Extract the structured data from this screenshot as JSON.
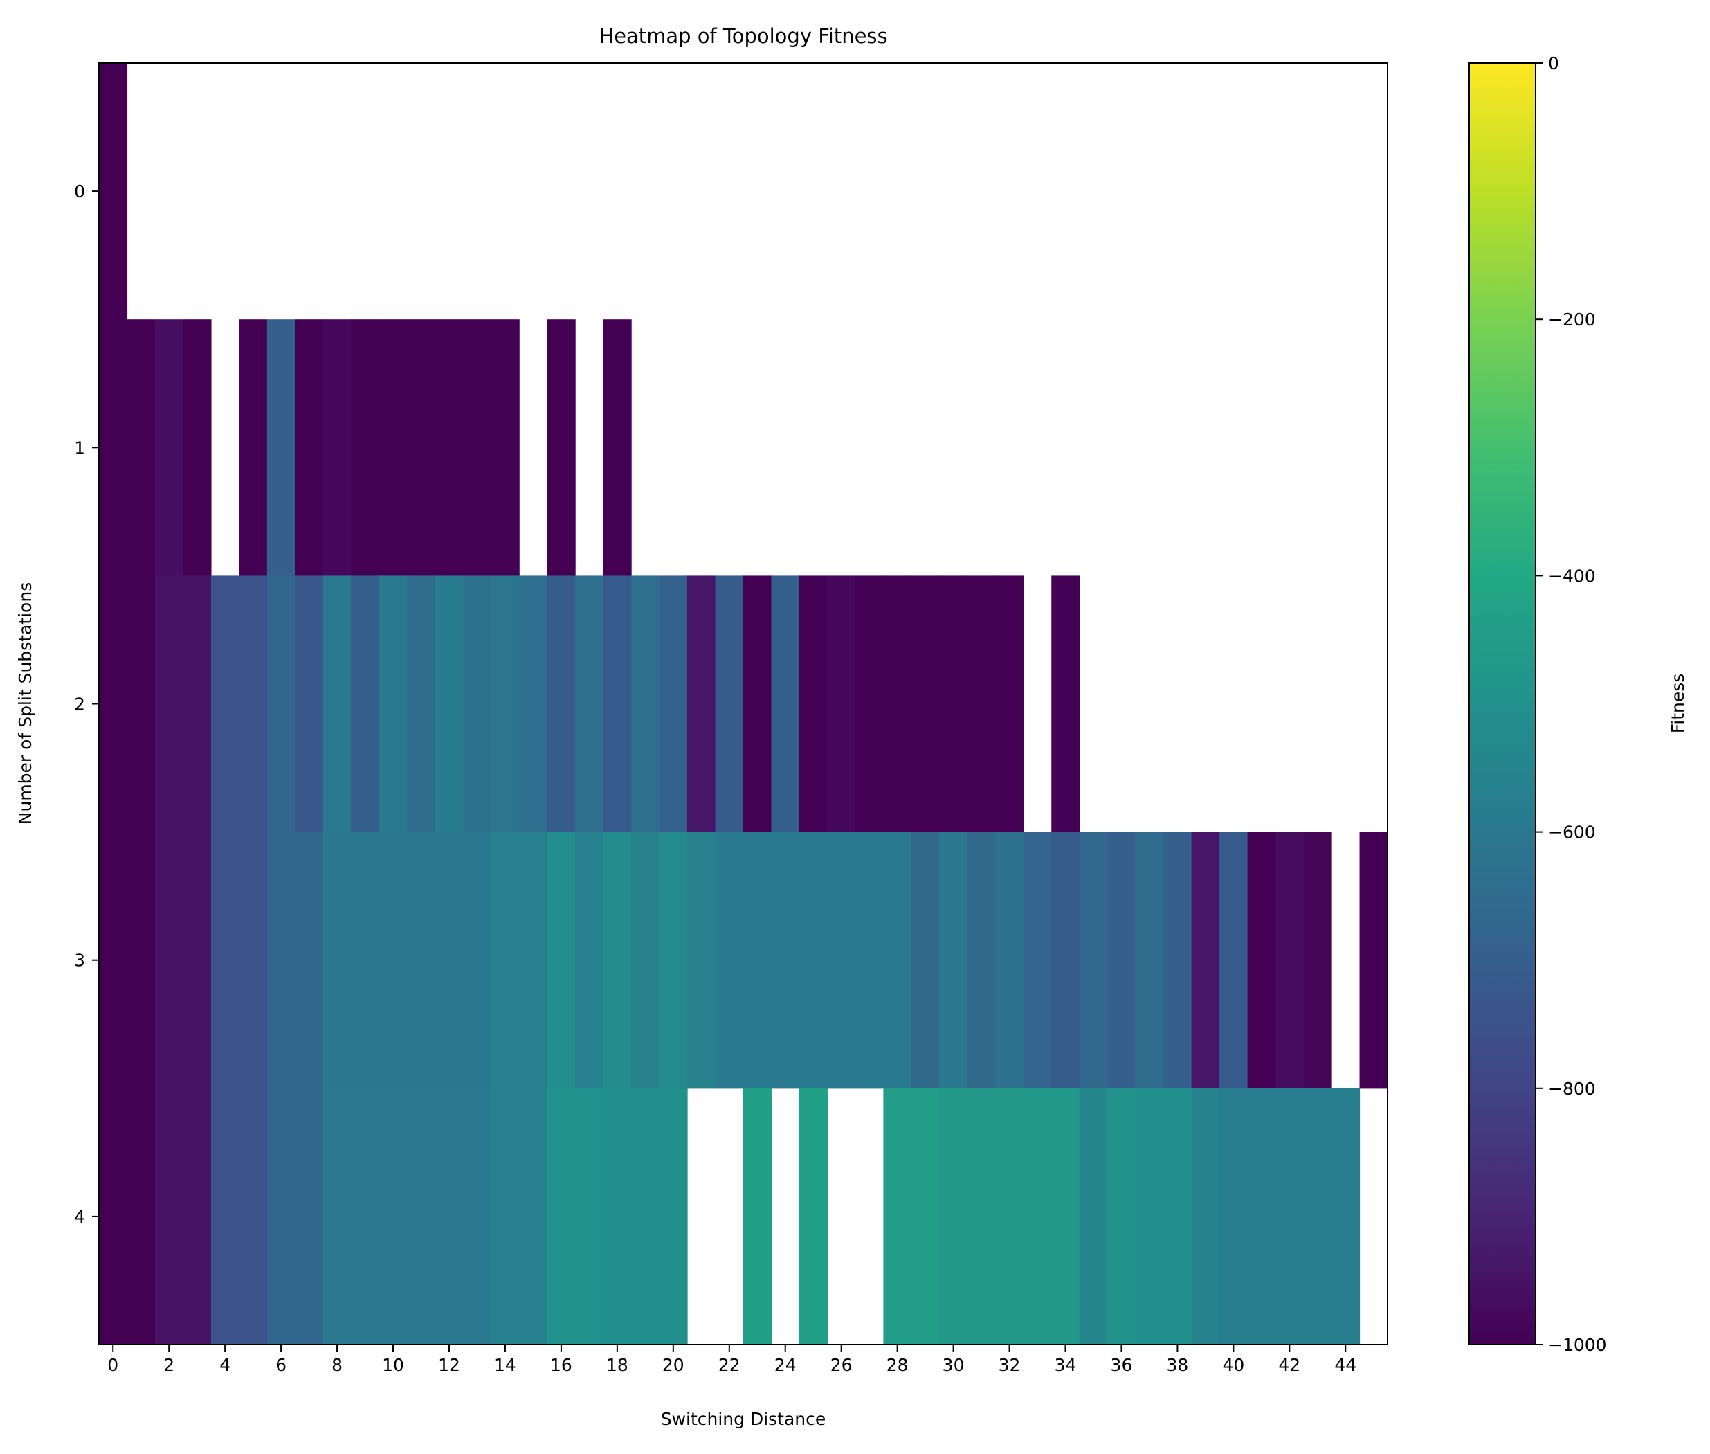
{
  "chart_data": {
    "type": "heatmap",
    "title": "Heatmap of Topology Fitness",
    "xlabel": "Switching Distance",
    "ylabel": "Number of Split Substations",
    "colorbar_label": "Fitness",
    "colormap": "viridis",
    "vmin": -1000,
    "vmax": 0,
    "x": [
      0,
      1,
      2,
      3,
      4,
      5,
      6,
      7,
      8,
      9,
      10,
      11,
      12,
      13,
      14,
      15,
      16,
      17,
      18,
      19,
      20,
      21,
      22,
      23,
      24,
      25,
      26,
      27,
      28,
      29,
      30,
      31,
      32,
      33,
      34,
      35,
      36,
      37,
      38,
      39,
      40,
      41,
      42,
      43,
      44,
      45
    ],
    "y": [
      0,
      1,
      2,
      3,
      4
    ],
    "x_tick_labels": [
      "0",
      "2",
      "4",
      "6",
      "8",
      "10",
      "12",
      "14",
      "16",
      "18",
      "20",
      "22",
      "24",
      "26",
      "28",
      "30",
      "32",
      "34",
      "36",
      "38",
      "40",
      "42",
      "44"
    ],
    "y_tick_labels": [
      "0",
      "1",
      "2",
      "3",
      "4"
    ],
    "colorbar_tick_labels": [
      "0",
      "−200",
      "−400",
      "−600",
      "−800",
      "−1000"
    ],
    "colorbar_ticks": [
      0,
      -200,
      -400,
      -600,
      -800,
      -1000
    ],
    "values": [
      [
        -1000,
        null,
        null,
        null,
        null,
        null,
        null,
        null,
        null,
        null,
        null,
        null,
        null,
        null,
        null,
        null,
        null,
        null,
        null,
        null,
        null,
        null,
        null,
        null,
        null,
        null,
        null,
        null,
        null,
        null,
        null,
        null,
        null,
        null,
        null,
        null,
        null,
        null,
        null,
        null,
        null,
        null,
        null,
        null,
        null,
        null
      ],
      [
        -1000,
        -1000,
        -960,
        -1000,
        null,
        -1000,
        -700,
        -1000,
        -980,
        -1000,
        -1000,
        -1000,
        -1000,
        -1000,
        -1000,
        null,
        -1000,
        null,
        -1000,
        null,
        null,
        null,
        null,
        null,
        null,
        null,
        null,
        null,
        null,
        null,
        null,
        null,
        null,
        null,
        null,
        null,
        null,
        null,
        null,
        null,
        null,
        null,
        null,
        null,
        null,
        null
      ],
      [
        -1000,
        -1000,
        -950,
        -950,
        -750,
        -750,
        -670,
        -730,
        -590,
        -700,
        -590,
        -650,
        -585,
        -630,
        -610,
        -640,
        -710,
        -640,
        -720,
        -640,
        -690,
        -940,
        -710,
        -1000,
        -700,
        -1000,
        -980,
        -1000,
        -1000,
        -1000,
        -1000,
        -1000,
        -1000,
        null,
        -1000,
        null,
        null,
        null,
        null,
        null,
        null,
        null,
        null,
        null,
        null,
        null
      ],
      [
        -1000,
        -1000,
        -950,
        -950,
        -750,
        -750,
        -670,
        -670,
        -600,
        -600,
        -600,
        -600,
        -600,
        -600,
        -570,
        -570,
        -510,
        -570,
        -520,
        -565,
        -525,
        -565,
        -590,
        -590,
        -590,
        -590,
        -590,
        -590,
        -590,
        -660,
        -600,
        -660,
        -630,
        -680,
        -710,
        -660,
        -700,
        -650,
        -700,
        -940,
        -720,
        -1000,
        -970,
        -990,
        null,
        -1000
      ],
      [
        -1000,
        -1000,
        -950,
        -950,
        -750,
        -750,
        -670,
        -670,
        -595,
        -595,
        -595,
        -595,
        -595,
        -595,
        -570,
        -570,
        -500,
        -500,
        -505,
        -505,
        -505,
        null,
        null,
        -440,
        null,
        -440,
        null,
        null,
        -450,
        -450,
        -470,
        -470,
        -470,
        -470,
        -470,
        -540,
        -490,
        -505,
        -505,
        -560,
        -580,
        -580,
        -580,
        -580,
        -580,
        null
      ]
    ]
  }
}
